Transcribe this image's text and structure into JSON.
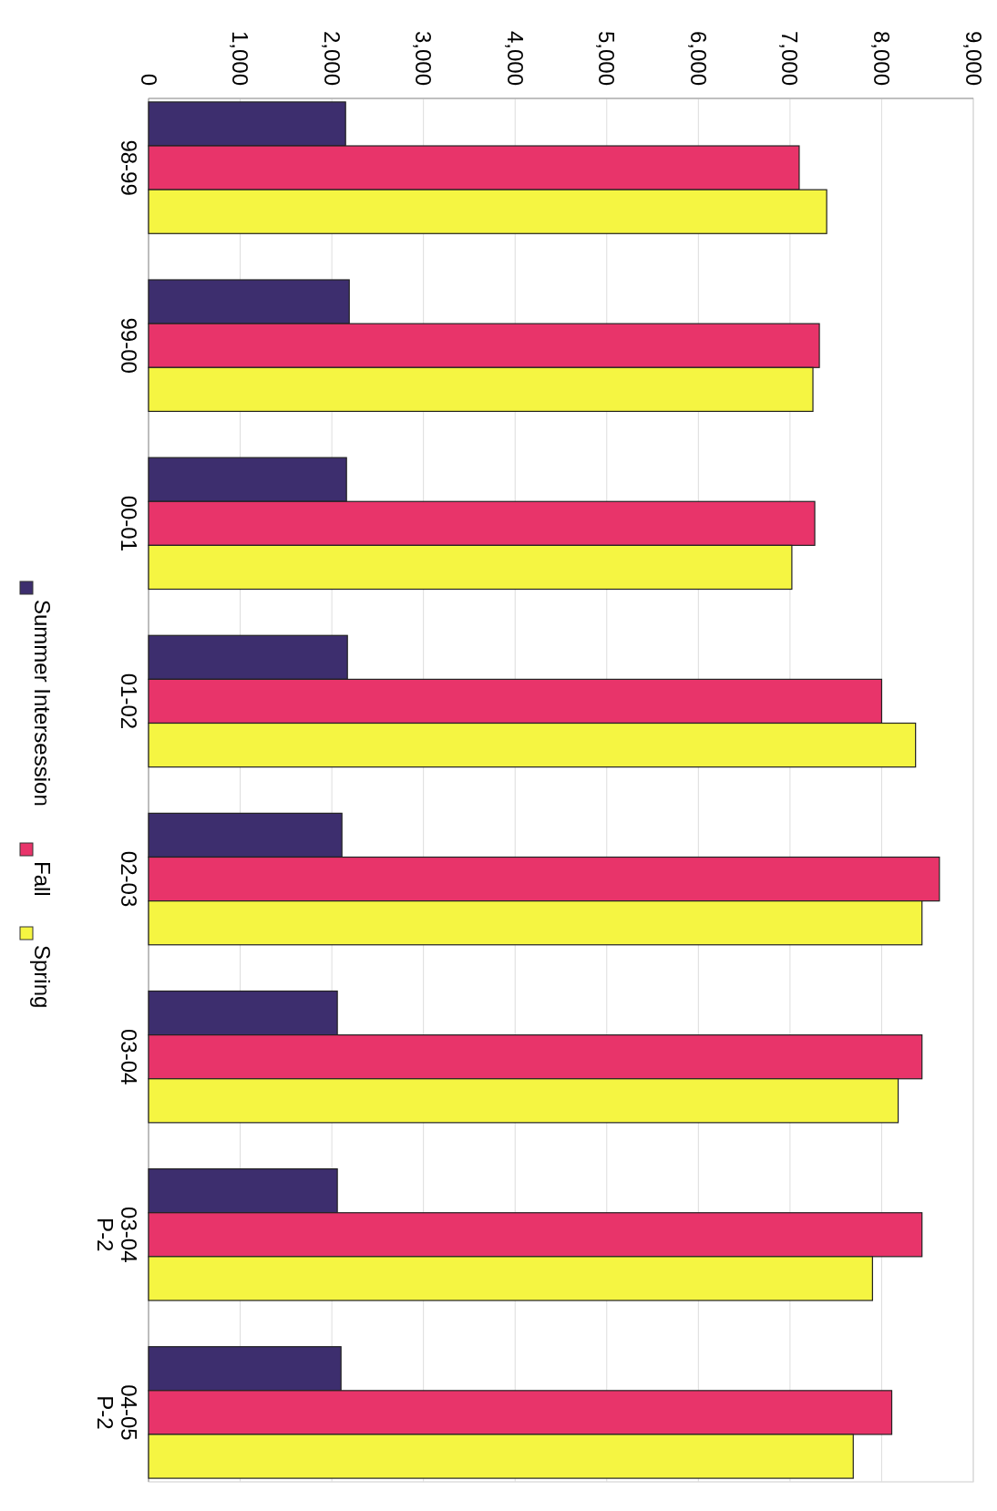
{
  "chart_data": {
    "type": "bar",
    "orientation": "horizontal",
    "categories": [
      "98-99",
      "99-00",
      "00-01",
      "01-02",
      "02-03",
      "03-04",
      "03-04 P-2",
      "04-05 P-2"
    ],
    "series": [
      {
        "name": "Summer Intersession",
        "color": "#3d2e6e",
        "values": [
          2150,
          2190,
          2160,
          2170,
          2110,
          2060,
          2060,
          2100
        ]
      },
      {
        "name": "Fall",
        "color": "#e8346a",
        "values": [
          7100,
          7320,
          7270,
          8000,
          8630,
          8440,
          8440,
          8110
        ]
      },
      {
        "name": "Spring",
        "color": "#f5f542",
        "values": [
          7400,
          7250,
          7020,
          8370,
          8440,
          8180,
          7900,
          7690
        ]
      }
    ],
    "xlim": [
      0,
      9000
    ],
    "xticks": [
      0,
      {
        "value": 1000,
        "label": "1,000"
      },
      {
        "value": 2000,
        "label": "2,000"
      },
      {
        "value": 3000,
        "label": "3,000"
      },
      {
        "value": 4000,
        "label": "4,000"
      },
      {
        "value": 5000,
        "label": "5,000"
      },
      {
        "value": 6000,
        "label": "6,000"
      },
      {
        "value": 7000,
        "label": "7,000"
      },
      {
        "value": 8000,
        "label": "8,000"
      },
      {
        "value": 9000,
        "label": "9,000"
      }
    ],
    "grid": "x",
    "legend": "left"
  }
}
